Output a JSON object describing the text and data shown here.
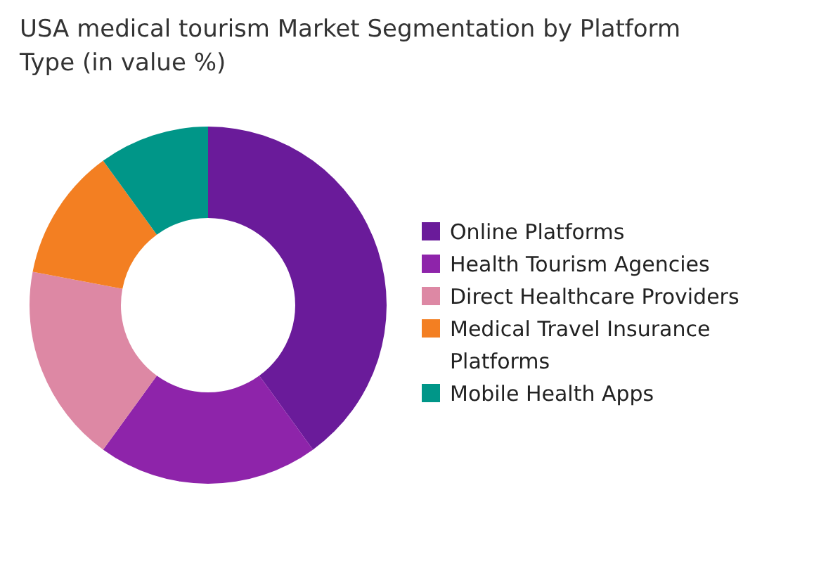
{
  "chart_data": {
    "type": "donut",
    "title": "USA medical tourism Market Segmentation by Platform Type (in value %)",
    "categories": [
      "Online Platforms",
      "Health Tourism Agencies",
      "Direct Healthcare Providers",
      "Medical Travel Insurance Platforms",
      "Mobile Health Apps"
    ],
    "values": [
      40,
      20,
      18,
      12,
      10
    ],
    "colors": [
      "#6a1b9a",
      "#8e24aa",
      "#dd88a4",
      "#f37f22",
      "#009688"
    ],
    "legend": "right"
  }
}
